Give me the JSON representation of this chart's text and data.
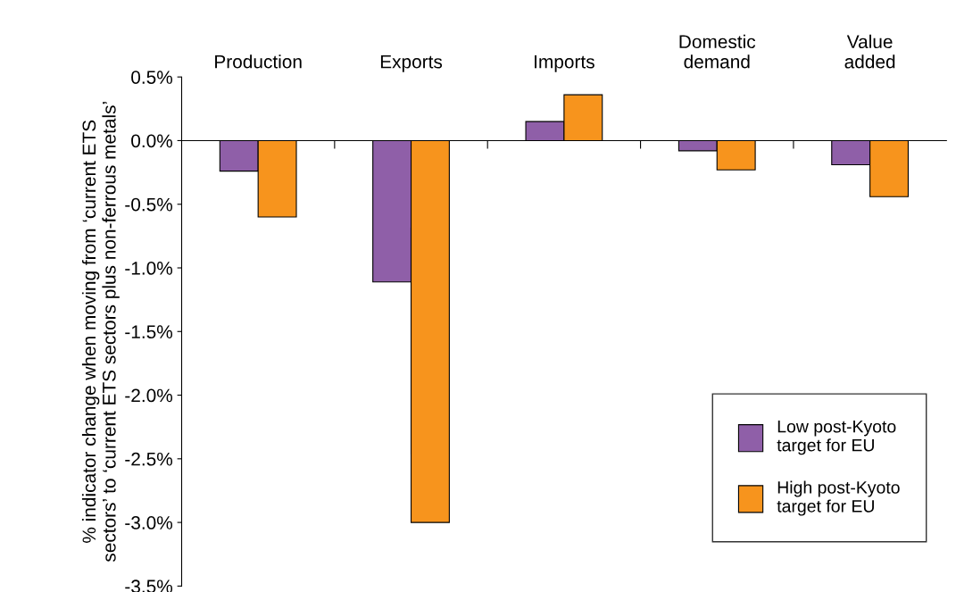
{
  "chart_data": {
    "type": "bar",
    "ylabel": "% indicator change when moving from ‘current ETS\nsectors’ to ‘current ETS sectors plus non-ferrous metals’",
    "categories": [
      "Production",
      "Exports",
      "Imports",
      "Domestic\ndemand",
      "Value\nadded"
    ],
    "series": [
      {
        "name": "Low post-Kyoto\ntarget for EU",
        "color": "#8f5fa8",
        "values": [
          -0.24,
          -1.11,
          0.15,
          -0.08,
          -0.19
        ]
      },
      {
        "name": "High post-Kyoto\ntarget for EU",
        "color": "#f7941d",
        "values": [
          -0.6,
          -3.0,
          0.36,
          -0.23,
          -0.44
        ]
      }
    ],
    "ylim": [
      -3.5,
      0.5
    ],
    "yticks": [
      {
        "value": 0.5,
        "label": "0.5%"
      },
      {
        "value": 0.0,
        "label": "0.0%"
      },
      {
        "value": -0.5,
        "label": "-0.5%"
      },
      {
        "value": -1.0,
        "label": "-1.0%"
      },
      {
        "value": -1.5,
        "label": "-1.5%"
      },
      {
        "value": -2.0,
        "label": "-2.0%"
      },
      {
        "value": -2.5,
        "label": "-2.5%"
      },
      {
        "value": -3.0,
        "label": "-3.0%"
      },
      {
        "value": -3.5,
        "label": "-3.5%"
      }
    ],
    "legend": "bottom right"
  }
}
